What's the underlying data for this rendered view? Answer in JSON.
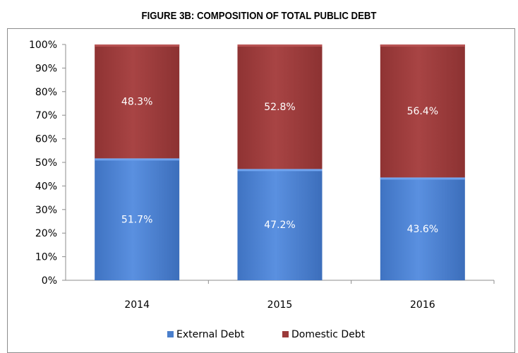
{
  "chart_data": {
    "type": "bar",
    "stacked": true,
    "percent": true,
    "title": "FIGURE 3B: COMPOSITION OF TOTAL PUBLIC DEBT",
    "categories": [
      "2014",
      "2015",
      "2016"
    ],
    "series": [
      {
        "name": "External Debt",
        "values": [
          51.7,
          47.2,
          43.6
        ],
        "labels": [
          "51.7%",
          "47.2%",
          "43.6%"
        ],
        "color": "#4a7fcc"
      },
      {
        "name": "Domestic Debt",
        "values": [
          48.3,
          52.8,
          56.4
        ],
        "labels": [
          "48.3%",
          "52.8%",
          "56.4%"
        ],
        "color": "#9b3a3a"
      }
    ],
    "ylim": [
      0,
      100
    ],
    "yticks": [
      "0%",
      "10%",
      "20%",
      "30%",
      "40%",
      "50%",
      "60%",
      "70%",
      "80%",
      "90%",
      "100%"
    ],
    "grid": false,
    "legend": "bottom"
  }
}
